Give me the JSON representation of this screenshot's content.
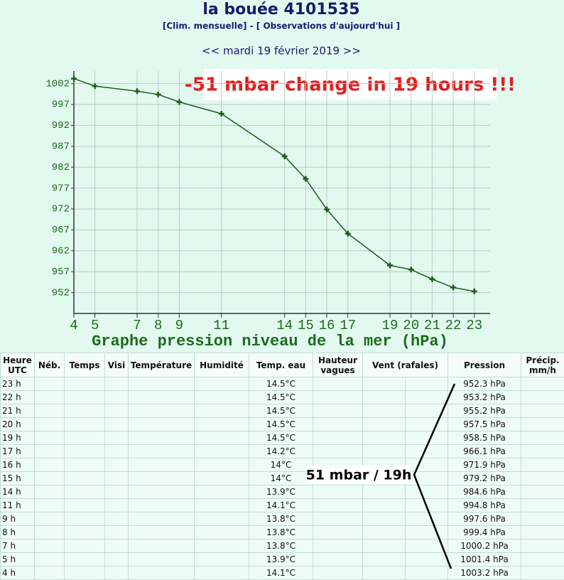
{
  "header": {
    "title": "la bouée 4101535",
    "links": "[Clim. mensuelle] - [ Observations d'aujourd'hui ]",
    "date": "<< mardi 19 février 2019 >>"
  },
  "chart_data": {
    "type": "line",
    "xlabel": "Graphe pression niveau de la mer (hPa)",
    "annotation": "-51 mbar change in 19 hours !!!",
    "x": [
      4,
      5,
      7,
      8,
      9,
      11,
      14,
      15,
      16,
      17,
      19,
      20,
      21,
      22,
      23
    ],
    "values": [
      1003.2,
      1001.4,
      1000.2,
      999.4,
      997.6,
      994.8,
      984.6,
      979.2,
      971.9,
      966.1,
      958.5,
      957.5,
      955.2,
      953.2,
      952.3
    ],
    "color": "#1c5e1c",
    "grid": true,
    "xlim": [
      4,
      23.75
    ],
    "xticks": [
      4,
      5,
      7,
      8,
      9,
      11,
      14,
      15,
      16,
      17,
      19,
      20,
      21,
      22,
      23
    ],
    "ylim": [
      947,
      1005
    ],
    "yticks": [
      952,
      957,
      962,
      967,
      972,
      977,
      982,
      987,
      992,
      997,
      1002
    ]
  },
  "table": {
    "annotation": "51 mbar / 19h",
    "headers": [
      "Heure UTC",
      "Néb.",
      "Temps",
      "Visi",
      "Température",
      "Humidité",
      "Temp. eau",
      "Hauteur vagues",
      "Vent (rafales)",
      "Pression",
      "Précip. mm/h"
    ],
    "rows": [
      {
        "heure": "23 h",
        "temp_eau": "14.5°C",
        "pression": "952.3 hPa"
      },
      {
        "heure": "22 h",
        "temp_eau": "14.5°C",
        "pression": "953.2 hPa"
      },
      {
        "heure": "21 h",
        "temp_eau": "14.5°C",
        "pression": "955.2 hPa"
      },
      {
        "heure": "20 h",
        "temp_eau": "14.5°C",
        "pression": "957.5 hPa"
      },
      {
        "heure": "19 h",
        "temp_eau": "14.5°C",
        "pression": "958.5 hPa"
      },
      {
        "heure": "17 h",
        "temp_eau": "14.2°C",
        "pression": "966.1 hPa"
      },
      {
        "heure": "16 h",
        "temp_eau": "14°C",
        "pression": "971.9 hPa"
      },
      {
        "heure": "15 h",
        "temp_eau": "14°C",
        "pression": "979.2 hPa"
      },
      {
        "heure": "14 h",
        "temp_eau": "13.9°C",
        "pression": "984.6 hPa"
      },
      {
        "heure": "11 h",
        "temp_eau": "14.1°C",
        "pression": "994.8 hPa"
      },
      {
        "heure": "9 h",
        "temp_eau": "13.8°C",
        "pression": "997.6 hPa"
      },
      {
        "heure": "8 h",
        "temp_eau": "13.8°C",
        "pression": "999.4 hPa"
      },
      {
        "heure": "7 h",
        "temp_eau": "13.8°C",
        "pression": "1000.2 hPa"
      },
      {
        "heure": "5 h",
        "temp_eau": "13.9°C",
        "pression": "1001.4 hPa"
      },
      {
        "heure": "4 h",
        "temp_eau": "14.1°C",
        "pression": "1003.2 hPa"
      }
    ]
  }
}
